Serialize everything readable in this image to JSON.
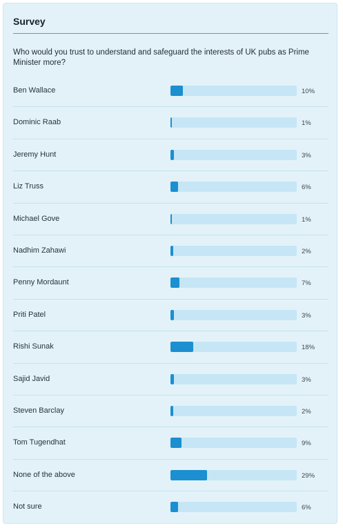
{
  "survey": {
    "title": "Survey",
    "question": "Who would you trust to understand and safeguard the interests of UK pubs as Prime Minister more?",
    "bar_color": "#1b8fd0",
    "track_color": "#c6e6f5",
    "options": [
      {
        "label": "Ben Wallace",
        "value": 10,
        "percent_label": "10%"
      },
      {
        "label": "Dominic Raab",
        "value": 1,
        "percent_label": "1%"
      },
      {
        "label": "Jeremy Hunt",
        "value": 3,
        "percent_label": "3%"
      },
      {
        "label": "Liz Truss",
        "value": 6,
        "percent_label": "6%"
      },
      {
        "label": "Michael Gove",
        "value": 1,
        "percent_label": "1%"
      },
      {
        "label": "Nadhim Zahawi",
        "value": 2,
        "percent_label": "2%"
      },
      {
        "label": "Penny Mordaunt",
        "value": 7,
        "percent_label": "7%"
      },
      {
        "label": "Priti Patel",
        "value": 3,
        "percent_label": "3%"
      },
      {
        "label": "Rishi Sunak",
        "value": 18,
        "percent_label": "18%"
      },
      {
        "label": "Sajid Javid",
        "value": 3,
        "percent_label": "3%"
      },
      {
        "label": "Steven Barclay",
        "value": 2,
        "percent_label": "2%"
      },
      {
        "label": "Tom Tugendhat",
        "value": 9,
        "percent_label": "9%"
      },
      {
        "label": "None of the above",
        "value": 29,
        "percent_label": "29%"
      },
      {
        "label": "Not sure",
        "value": 6,
        "percent_label": "6%"
      }
    ]
  }
}
